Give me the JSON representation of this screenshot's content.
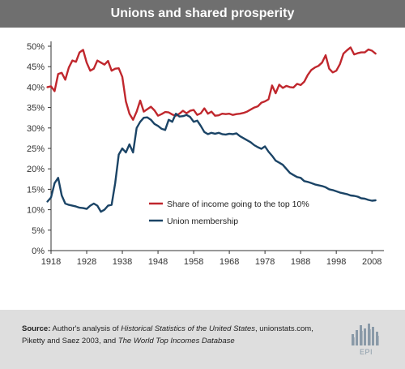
{
  "title": "Unions and shared prosperity",
  "source": {
    "label": "Source:",
    "part1": " Author's analysis of ",
    "italic1": "Historical Statistics of the United States",
    "part2": ", unionstats.com, Piketty and Saez 2003, and ",
    "italic2": "The World Top Incomes Database"
  },
  "logo_text": "EPI",
  "colors": {
    "income": "#c0272d",
    "union": "#1b4466",
    "axis": "#333333",
    "grid": "#e6e6e6",
    "title_bg": "#6f6f6f",
    "footer_bg": "#dedede"
  },
  "chart_data": {
    "type": "line",
    "title": "Unions and shared prosperity",
    "xlabel": "",
    "ylabel": "",
    "xlim": [
      1918,
      2010
    ],
    "ylim": [
      0,
      50
    ],
    "xticks": [
      1918,
      1928,
      1938,
      1948,
      1958,
      1968,
      1978,
      1988,
      1998,
      2008
    ],
    "yticks": [
      0,
      5,
      10,
      15,
      20,
      25,
      30,
      35,
      40,
      45,
      50
    ],
    "y_unit": "%",
    "grid": "none",
    "legend": "center-right",
    "series": [
      {
        "name": "Share of income going to the top 10%",
        "color": "#c0272d",
        "x": [
          1917,
          1918,
          1919,
          1920,
          1921,
          1922,
          1923,
          1924,
          1925,
          1926,
          1927,
          1928,
          1929,
          1930,
          1931,
          1932,
          1933,
          1934,
          1935,
          1936,
          1937,
          1938,
          1939,
          1940,
          1941,
          1942,
          1943,
          1944,
          1945,
          1946,
          1947,
          1948,
          1949,
          1950,
          1951,
          1952,
          1953,
          1954,
          1955,
          1956,
          1957,
          1958,
          1959,
          1960,
          1961,
          1962,
          1963,
          1964,
          1965,
          1966,
          1967,
          1968,
          1969,
          1970,
          1971,
          1972,
          1973,
          1974,
          1975,
          1976,
          1977,
          1978,
          1979,
          1980,
          1981,
          1982,
          1983,
          1984,
          1985,
          1986,
          1987,
          1988,
          1989,
          1990,
          1991,
          1992,
          1993,
          1994,
          1995,
          1996,
          1997,
          1998,
          1999,
          2000,
          2001,
          2002,
          2003,
          2004,
          2005,
          2006,
          2007,
          2008,
          2009
        ],
        "values": [
          40.0,
          40.2,
          39.0,
          43.2,
          43.5,
          41.8,
          44.8,
          46.5,
          46.2,
          48.5,
          49.1,
          46.0,
          44.0,
          44.5,
          46.5,
          46.0,
          45.5,
          46.4,
          44.0,
          44.5,
          44.6,
          42.5,
          36.5,
          33.5,
          32.0,
          34.0,
          36.7,
          34.0,
          34.6,
          35.2,
          34.3,
          33.0,
          33.4,
          33.9,
          33.8,
          33.3,
          33.0,
          33.5,
          34.2,
          33.6,
          34.2,
          34.4,
          33.2,
          33.6,
          34.8,
          33.5,
          34.0,
          33.0,
          33.1,
          33.5,
          33.4,
          33.5,
          33.2,
          33.4,
          33.5,
          33.7,
          34.0,
          34.5,
          35.0,
          35.3,
          36.2,
          36.5,
          37.0,
          40.4,
          38.5,
          40.6,
          39.8,
          40.3,
          40.0,
          39.9,
          40.8,
          40.5,
          41.3,
          43.0,
          44.2,
          44.8,
          45.2,
          46.0,
          47.8,
          44.5,
          43.6,
          44.0,
          45.6,
          48.2,
          49.0,
          49.7,
          48.0,
          48.3,
          48.5,
          48.5,
          49.2,
          48.9,
          48.2
        ]
      },
      {
        "name": "Union membership",
        "color": "#1b4466",
        "x": [
          1917,
          1918,
          1919,
          1920,
          1921,
          1922,
          1923,
          1924,
          1925,
          1926,
          1927,
          1928,
          1929,
          1930,
          1931,
          1932,
          1933,
          1934,
          1935,
          1936,
          1937,
          1938,
          1939,
          1940,
          1941,
          1942,
          1943,
          1944,
          1945,
          1946,
          1947,
          1948,
          1949,
          1950,
          1951,
          1952,
          1953,
          1954,
          1955,
          1956,
          1957,
          1958,
          1959,
          1960,
          1961,
          1962,
          1963,
          1964,
          1965,
          1966,
          1967,
          1968,
          1969,
          1970,
          1971,
          1972,
          1973,
          1974,
          1975,
          1976,
          1977,
          1978,
          1979,
          1980,
          1981,
          1982,
          1983,
          1984,
          1985,
          1986,
          1987,
          1988,
          1989,
          1990,
          1991,
          1992,
          1993,
          1994,
          1995,
          1996,
          1997,
          1998,
          1999,
          2000,
          2001,
          2002,
          2003,
          2004,
          2005,
          2006,
          2007,
          2008,
          2009
        ],
        "values": [
          12.0,
          13.0,
          16.5,
          17.8,
          13.5,
          11.5,
          11.2,
          11.0,
          10.8,
          10.5,
          10.4,
          10.2,
          11.0,
          11.5,
          11.0,
          9.5,
          10.0,
          11.0,
          11.2,
          16.5,
          23.5,
          25.0,
          24.0,
          26.0,
          24.0,
          30.0,
          31.5,
          32.5,
          32.6,
          32.0,
          31.0,
          30.5,
          29.8,
          29.5,
          32.0,
          31.5,
          33.5,
          32.8,
          32.9,
          33.2,
          32.7,
          31.5,
          31.8,
          30.5,
          29.0,
          28.5,
          28.8,
          28.6,
          28.8,
          28.5,
          28.4,
          28.6,
          28.5,
          28.7,
          28.0,
          27.5,
          27.0,
          26.5,
          25.8,
          25.3,
          24.9,
          25.5,
          24.2,
          23.2,
          22.0,
          21.5,
          21.0,
          20.0,
          19.0,
          18.5,
          18.0,
          17.8,
          17.0,
          16.8,
          16.5,
          16.2,
          16.0,
          15.8,
          15.5,
          15.0,
          14.8,
          14.5,
          14.2,
          14.0,
          13.8,
          13.5,
          13.4,
          13.2,
          12.8,
          12.7,
          12.4,
          12.2,
          12.3
        ]
      }
    ]
  }
}
